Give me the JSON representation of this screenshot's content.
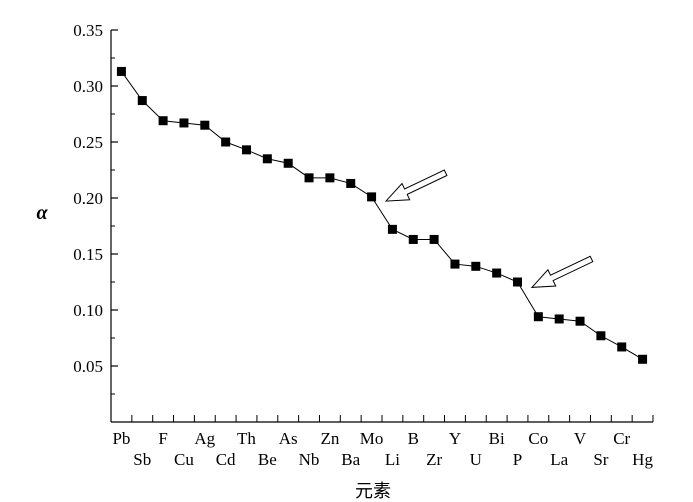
{
  "chart_data": {
    "type": "line",
    "xlabel": "元素",
    "ylabel": "α",
    "ylim": [
      0.0,
      0.35
    ],
    "yticks": [
      "0.05",
      "0.10",
      "0.15",
      "0.20",
      "0.25",
      "0.30",
      "0.35"
    ],
    "categories": [
      "Pb",
      "Sb",
      "F",
      "Cu",
      "Ag",
      "Cd",
      "Th",
      "Be",
      "As",
      "Nb",
      "Zn",
      "Ba",
      "Mo",
      "Li",
      "B",
      "Zr",
      "Y",
      "U",
      "Bi",
      "P",
      "Co",
      "La",
      "V",
      "Sr",
      "Cr",
      "Hg"
    ],
    "values": [
      0.313,
      0.287,
      0.269,
      0.267,
      0.265,
      0.25,
      0.243,
      0.235,
      0.231,
      0.218,
      0.218,
      0.213,
      0.201,
      0.172,
      0.163,
      0.163,
      0.141,
      0.139,
      0.133,
      0.125,
      0.094,
      0.092,
      0.09,
      0.077,
      0.067,
      0.056
    ],
    "marker": "square",
    "line_color": "#000000",
    "annotations": [
      {
        "type": "arrow",
        "points_to_category": "Li",
        "between": [
          "Mo",
          "Li"
        ]
      },
      {
        "type": "arrow",
        "points_to_category": "Co",
        "between": [
          "P",
          "Co"
        ]
      }
    ]
  }
}
